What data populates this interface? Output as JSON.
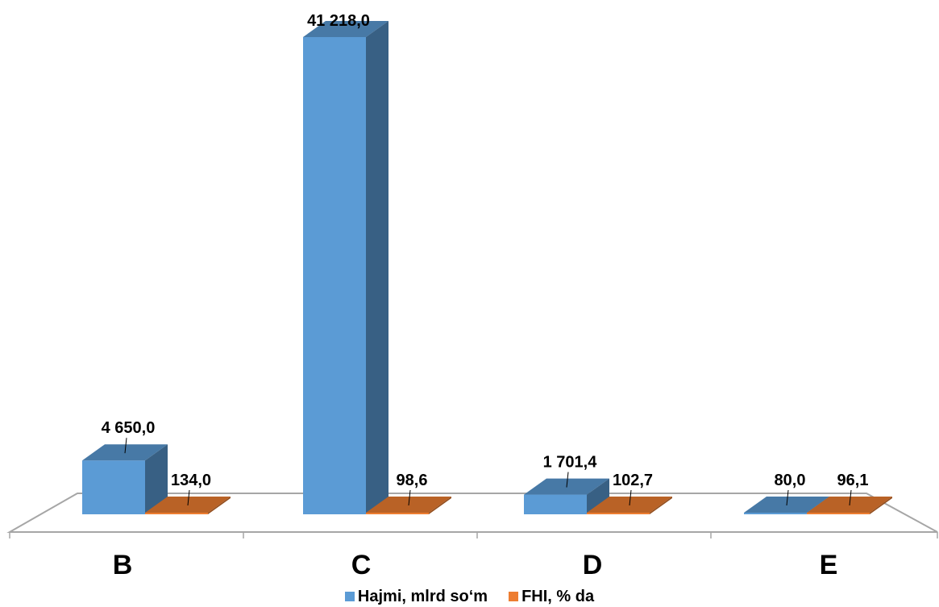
{
  "chart_data": {
    "type": "bar",
    "categories": [
      "B",
      "C",
      "D",
      "E"
    ],
    "series": [
      {
        "name": "Hajmi, mlrd so‘m",
        "color": "#5B9BD5",
        "values": [
          4650.0,
          41218.0,
          1701.4,
          80.0
        ],
        "labels": [
          "4 650,0",
          "41 218,0",
          "1 701,4",
          "80,0"
        ]
      },
      {
        "name": "FHI, % da",
        "color": "#ED7D31",
        "values": [
          134.0,
          98.6,
          102.7,
          96.1
        ],
        "labels": [
          "134,0",
          "98,6",
          "102,7",
          "96,1"
        ]
      }
    ],
    "title": "",
    "xlabel": "",
    "ylabel": "",
    "ylim": [
      0,
      41218
    ],
    "grid": false,
    "legend": "bottom",
    "style": "3d-clustered-column"
  }
}
